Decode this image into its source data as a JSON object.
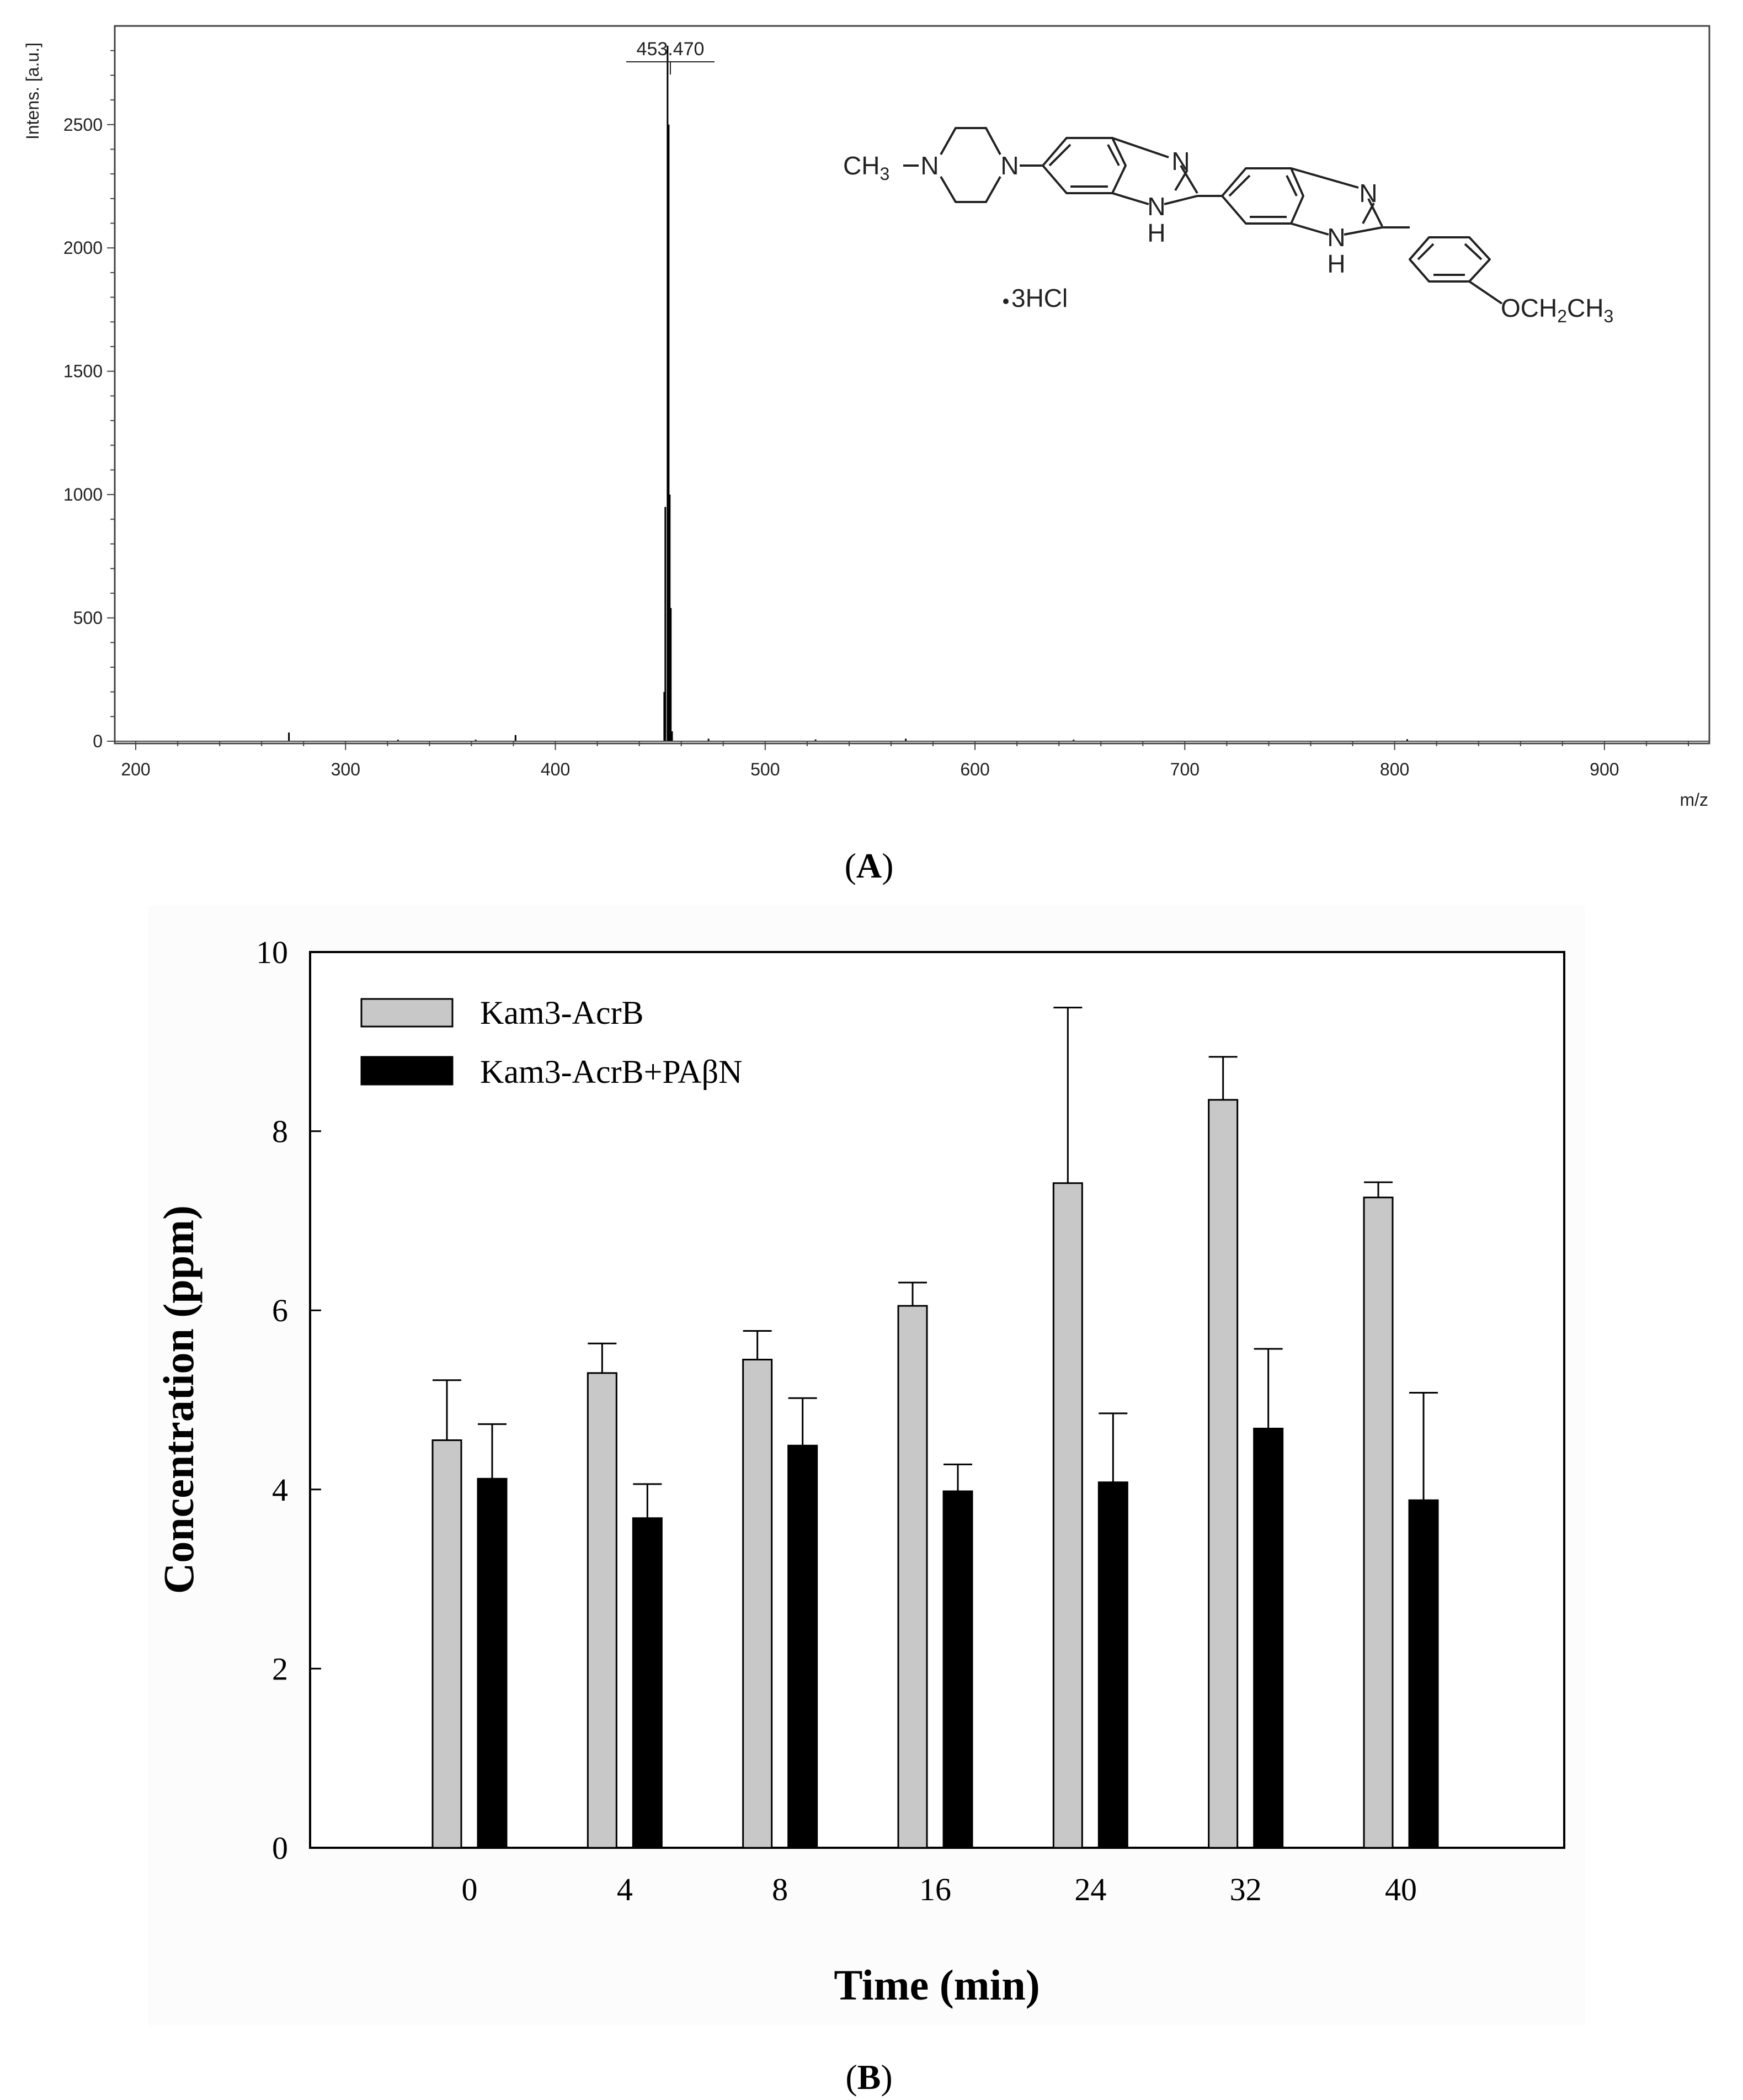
{
  "panel_a": {
    "label_letter": "A",
    "structure": {
      "ch3": "CH",
      "ch3_sub": "3",
      "n_piperazine_methyl": "N",
      "n_piperazine_aryl": "N",
      "n_imidazole_1": "N",
      "nh_imidazole_1": "N",
      "h_imidazole_1": "H",
      "n_imidazole_2": "N",
      "nh_imidazole_2": "N",
      "h_imidazole_2": "H",
      "salt": "3HCl",
      "och2ch3_o": "OCH",
      "och2ch3_sub1": "2",
      "och2ch3_ch": "CH",
      "och2ch3_sub2": "3"
    }
  },
  "panel_b": {
    "label_letter": "B"
  },
  "chart_data": [
    {
      "type": "line",
      "title": "",
      "xlabel": "m/z",
      "ylabel": "Intens. [a.u.]",
      "xlim": [
        190,
        950
      ],
      "ylim": [
        0,
        2900
      ],
      "xticks": [
        200,
        300,
        400,
        500,
        600,
        700,
        800,
        900
      ],
      "yticks": [
        0,
        500,
        1000,
        1500,
        2000,
        2500
      ],
      "peak_label": "453.470",
      "series": [
        {
          "x": [
            273.0,
            325.0,
            362.0,
            381.0,
            451.9,
            452.4,
            453.47,
            454.0,
            454.5,
            455.0,
            455.6,
            473.0,
            524.0,
            567.0,
            647.0,
            806.0
          ],
          "y": [
            35,
            6,
            6,
            25,
            200,
            950,
            2820,
            2500,
            1000,
            540,
            40,
            10,
            7,
            10,
            6,
            8
          ]
        }
      ]
    },
    {
      "type": "bar",
      "title": "",
      "xlabel": "Time (min)",
      "ylabel": "Concentration (ppm)",
      "categories": [
        "0",
        "4",
        "8",
        "16",
        "24",
        "32",
        "40"
      ],
      "ylim": [
        0,
        10
      ],
      "yticks": [
        0,
        2,
        4,
        6,
        8,
        10
      ],
      "legend_position": "top-left",
      "series": [
        {
          "name": "Kam3-AcrB",
          "color": "#c8c8c8",
          "values": [
            4.55,
            5.3,
            5.45,
            6.05,
            7.42,
            8.35,
            7.26
          ],
          "errors": [
            0.67,
            0.33,
            0.32,
            0.26,
            1.96,
            0.48,
            0.17
          ]
        },
        {
          "name": "Kam3-AcrB+PAβN",
          "color": "#000000",
          "values": [
            4.12,
            3.68,
            4.49,
            3.98,
            4.08,
            4.68,
            3.88
          ],
          "errors": [
            0.61,
            0.38,
            0.53,
            0.3,
            0.77,
            0.89,
            1.2
          ]
        }
      ]
    }
  ]
}
